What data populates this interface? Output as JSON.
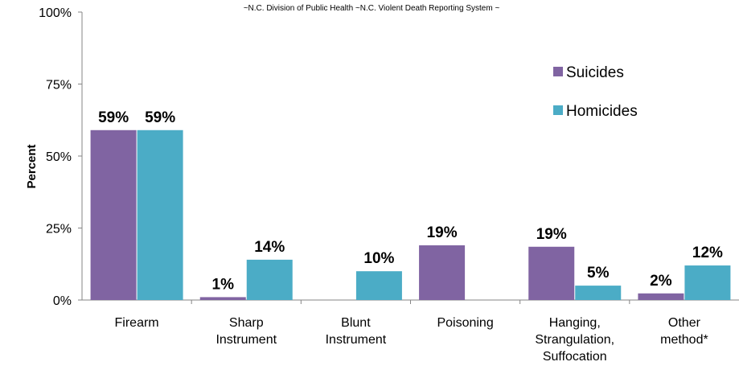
{
  "source_note": "~N.C. Division of Public Health ~N.C. Violent Death Reporting System ~",
  "chart_data": {
    "type": "bar",
    "title": "",
    "xlabel": "",
    "ylabel": "Percent",
    "ylim": [
      0,
      100
    ],
    "yticks": [
      "0%",
      "25%",
      "50%",
      "75%",
      "100%"
    ],
    "ytick_values": [
      0,
      25,
      50,
      75,
      100
    ],
    "categories": [
      [
        "Firearm"
      ],
      [
        "Sharp",
        "Instrument"
      ],
      [
        "Blunt",
        "Instrument"
      ],
      [
        "Poisoning"
      ],
      [
        "Hanging,",
        "Strangulation,",
        "Suffocation"
      ],
      [
        "Other",
        "method*"
      ]
    ],
    "series": [
      {
        "name": "Suicides",
        "color": "#8064A2",
        "values": [
          59,
          1,
          0,
          19,
          18.5,
          2.3
        ],
        "labels": [
          "59%",
          "1%",
          "",
          "19%",
          "19%",
          "2%"
        ]
      },
      {
        "name": "Homicides",
        "color": "#4BACC6",
        "values": [
          59,
          14,
          10,
          0,
          5,
          12
        ],
        "labels": [
          "59%",
          "14%",
          "10%",
          "",
          "5%",
          "12%"
        ]
      }
    ],
    "grid": false,
    "legend_position": "upper-right"
  }
}
